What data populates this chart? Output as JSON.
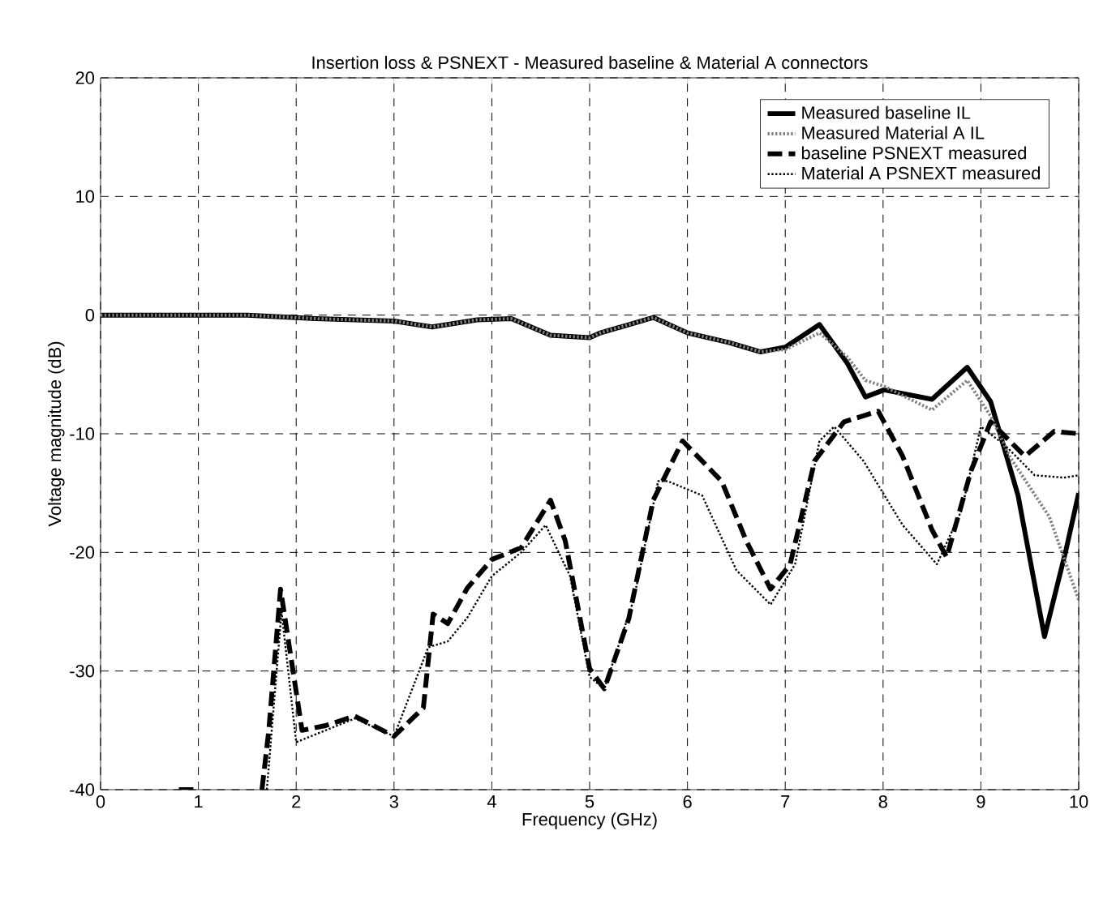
{
  "chart_data": {
    "type": "line",
    "title": "Insertion loss & PSNEXT - Measured baseline & Material A connectors",
    "xlabel": "Frequency (GHz)",
    "ylabel": "Voltage magnitude (dB)",
    "xlim": [
      0,
      10
    ],
    "ylim": [
      -40,
      20
    ],
    "xticks": [
      0,
      1,
      2,
      3,
      4,
      5,
      6,
      7,
      8,
      9,
      10
    ],
    "yticks": [
      -40,
      -30,
      -20,
      -10,
      0,
      10,
      20
    ],
    "grid": true,
    "legend": "top right",
    "series": [
      {
        "name": "Measured baseline IL",
        "color": "#000000",
        "line_style": "solid",
        "x": [
          0,
          1,
          1.5,
          2.2,
          3.0,
          3.39,
          3.85,
          4.2,
          4.6,
          5.0,
          5.11,
          5.65,
          6.0,
          6.42,
          6.75,
          7.0,
          7.35,
          7.63,
          7.82,
          8.01,
          8.5,
          8.86,
          9.1,
          9.38,
          9.65,
          9.87,
          10
        ],
        "values": [
          0,
          0,
          0,
          -0.3,
          -0.5,
          -1.0,
          -0.4,
          -0.3,
          -1.7,
          -1.9,
          -1.5,
          -0.2,
          -1.5,
          -2.3,
          -3.1,
          -2.7,
          -0.8,
          -4.0,
          -6.9,
          -6.3,
          -7.1,
          -4.4,
          -7.3,
          -15.2,
          -27.1,
          -19.8,
          -15
        ]
      },
      {
        "name": "Measured Material A IL",
        "color": "#808080",
        "line_style": "dotted",
        "x": [
          0,
          1,
          1.5,
          2.2,
          3.0,
          3.39,
          3.85,
          4.2,
          4.6,
          5.0,
          5.11,
          5.65,
          6.0,
          6.42,
          6.75,
          7.0,
          7.35,
          7.63,
          7.82,
          8.01,
          8.5,
          8.86,
          9.1,
          9.3,
          9.7,
          10
        ],
        "values": [
          0,
          0,
          0,
          -0.3,
          -0.5,
          -1.0,
          -0.4,
          -0.3,
          -1.7,
          -1.9,
          -1.5,
          -0.2,
          -1.5,
          -2.3,
          -3.1,
          -2.9,
          -1.5,
          -3.5,
          -5.5,
          -6.0,
          -8.0,
          -5.5,
          -8.5,
          -12,
          -17,
          -24
        ]
      },
      {
        "name": "baseline PSNEXT measured",
        "color": "#000000",
        "line_style": "dashed",
        "x": [
          0.8,
          1.0,
          1.3,
          1.65,
          1.72,
          1.84,
          2.06,
          2.3,
          2.6,
          3.0,
          3.3,
          3.4,
          3.55,
          3.75,
          4.0,
          4.3,
          4.6,
          4.75,
          5.0,
          5.15,
          5.4,
          5.65,
          5.95,
          6.15,
          6.35,
          6.6,
          6.85,
          7.05,
          7.3,
          7.6,
          7.95,
          8.2,
          8.5,
          8.65,
          8.9,
          9.1,
          9.45,
          9.75,
          10
        ],
        "values": [
          -40,
          -40,
          null,
          -40,
          -35,
          -23.1,
          -35,
          -34.6,
          -33.8,
          -35.5,
          -33.1,
          -25.2,
          -26,
          -23,
          -20.6,
          -19.6,
          -15.6,
          -19,
          -29.8,
          -31.5,
          -25.6,
          -15.6,
          -10.6,
          -12.3,
          -14,
          -19,
          -23.1,
          -21,
          -12.3,
          -9,
          -8.1,
          -11.9,
          -18.1,
          -20.4,
          -13.1,
          -9,
          -11.9,
          -9.8,
          -10
        ]
      },
      {
        "name": "Material A PSNEXT measured",
        "color": "#000000",
        "line_style": "dotted",
        "x": [
          1.7,
          1.78,
          1.85,
          2.0,
          2.3,
          2.6,
          3.0,
          3.35,
          3.55,
          3.75,
          4.0,
          4.3,
          4.55,
          4.8,
          5.0,
          5.15,
          5.45,
          5.7,
          5.8,
          6.15,
          6.5,
          6.85,
          7.1,
          7.35,
          7.5,
          7.8,
          8.2,
          8.55,
          8.8,
          9.0,
          9.25,
          9.55,
          9.85,
          10
        ],
        "values": [
          -40,
          -32,
          -25,
          -36,
          -35,
          -34,
          -35.5,
          -28,
          -27.5,
          -25.5,
          -22,
          -20,
          -17.7,
          -22,
          -30.5,
          -31.5,
          -24,
          -14,
          -14,
          -15.2,
          -21.5,
          -24.4,
          -21,
          -10.6,
          -9.4,
          -12.3,
          -17.7,
          -21,
          -16.5,
          -9.4,
          -11,
          -13.5,
          -13.7,
          -13.5
        ]
      }
    ]
  }
}
